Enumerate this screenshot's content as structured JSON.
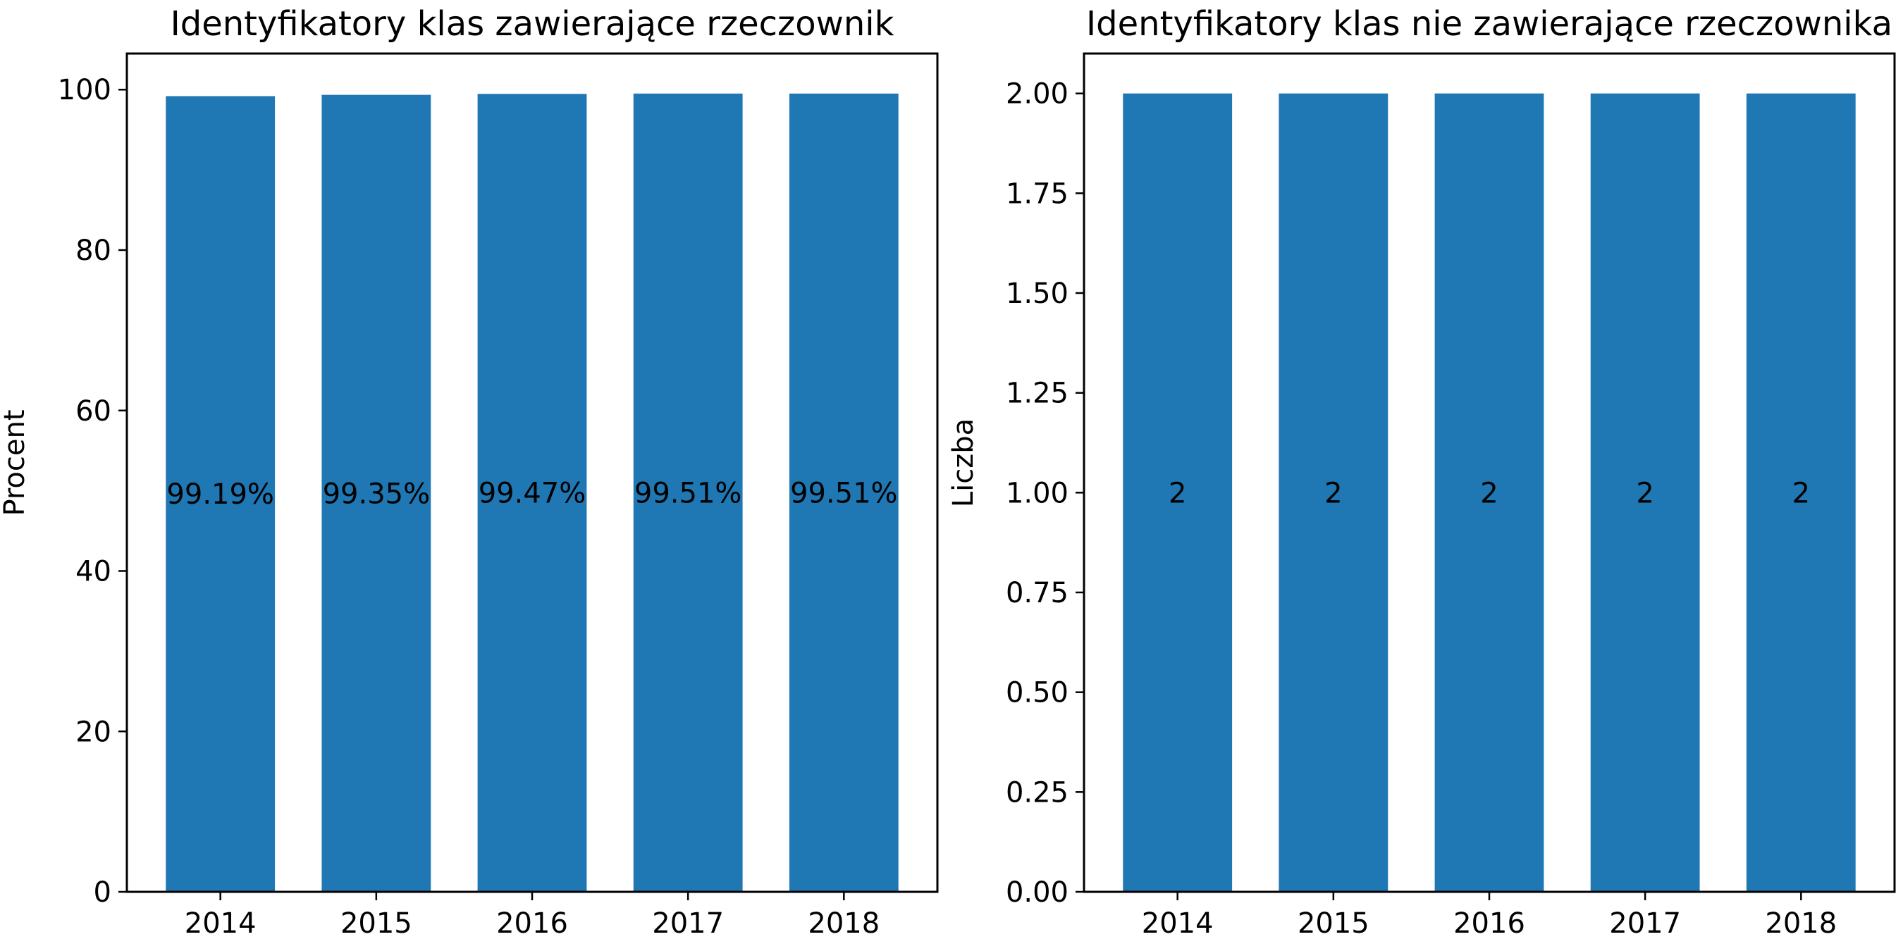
{
  "chart_data": [
    {
      "type": "bar",
      "title": "Identyfikatory klas zawierające rzeczownik",
      "xlabel": "",
      "ylabel": "Procent",
      "categories": [
        "2014",
        "2015",
        "2016",
        "2017",
        "2018"
      ],
      "values": [
        99.19,
        99.35,
        99.47,
        99.51,
        99.51
      ],
      "data_labels": [
        "99.19%",
        "99.35%",
        "99.47%",
        "99.51%",
        "99.51%"
      ],
      "ylim": [
        0,
        104.5
      ],
      "yticks": [
        0,
        20,
        40,
        60,
        80,
        100
      ],
      "ytick_labels": [
        "0",
        "20",
        "40",
        "60",
        "80",
        "100"
      ],
      "bar_color": "#1f77b4",
      "grid": false,
      "legend": "none"
    },
    {
      "type": "bar",
      "title": "Identyfikatory klas nie zawierające rzeczownika",
      "xlabel": "",
      "ylabel": "Liczba",
      "categories": [
        "2014",
        "2015",
        "2016",
        "2017",
        "2018"
      ],
      "values": [
        2,
        2,
        2,
        2,
        2
      ],
      "data_labels": [
        "2",
        "2",
        "2",
        "2",
        "2"
      ],
      "ylim": [
        0,
        2.1
      ],
      "yticks": [
        0,
        0.25,
        0.5,
        0.75,
        1.0,
        1.25,
        1.5,
        1.75,
        2.0
      ],
      "ytick_labels": [
        "0.00",
        "0.25",
        "0.50",
        "0.75",
        "1.00",
        "1.25",
        "1.50",
        "1.75",
        "2.00"
      ],
      "bar_color": "#1f77b4",
      "grid": false,
      "legend": "none"
    }
  ]
}
